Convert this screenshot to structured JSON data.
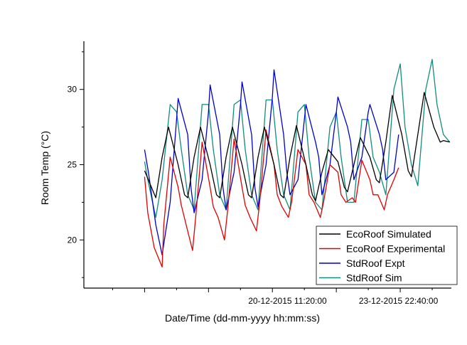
{
  "chart_data": {
    "type": "line",
    "xlabel": "Date/Time (dd-mm-yyyy hh:mm:ss)",
    "ylabel": "Room Temp (°C)",
    "x_unit": "days",
    "x_start": "2015-12-16 00:00",
    "xlim": [
      -1.9,
      9.6
    ],
    "ylim": [
      16.8,
      33.2
    ],
    "y_ticks": [
      20,
      25,
      30
    ],
    "x_tick_labels": [
      {
        "x": 4.472,
        "label": "20-12-2015 11:20:00"
      },
      {
        "x": 7.944,
        "label": "23-12-2015 22:40:00"
      }
    ],
    "legend_position": "bottom-right",
    "grid": false,
    "series": [
      {
        "name": "EcoRoof Simulated",
        "color": "#000000",
        "x": [
          0,
          0.35,
          0.55,
          0.75,
          1.05,
          1.25,
          1.35,
          1.55,
          1.75,
          2.05,
          2.25,
          2.35,
          2.55,
          2.75,
          3.05,
          3.25,
          3.35,
          3.55,
          3.75,
          4.05,
          4.25,
          4.35,
          4.55,
          4.75,
          5.05,
          5.25,
          5.35,
          5.55,
          5.75,
          6.05,
          6.25,
          6.35,
          6.55,
          6.75,
          7.05,
          7.25,
          7.35,
          7.55,
          7.75,
          8.05,
          8.25,
          8.35,
          8.55,
          8.75,
          9.05,
          9.25,
          9.35,
          9.55
        ],
        "values": [
          24.6,
          22.8,
          25.5,
          27.5,
          25.0,
          23.0,
          22.8,
          25.5,
          27.5,
          25.0,
          23.0,
          22.8,
          25.5,
          27.5,
          25.0,
          23.0,
          22.8,
          25.5,
          27.5,
          25.0,
          23.0,
          22.8,
          25.5,
          27.6,
          25.0,
          23.0,
          22.6,
          24.5,
          26.0,
          25.2,
          23.5,
          23.2,
          25.0,
          26.8,
          25.5,
          24.0,
          23.8,
          26.5,
          29.6,
          27.0,
          24.6,
          24.2,
          27.0,
          29.8,
          27.5,
          26.5,
          26.6,
          26.5
        ]
      },
      {
        "name": "EcoRoof Experimental",
        "color": "#e00000",
        "x": [
          0,
          0.1,
          0.3,
          0.55,
          0.6,
          0.8,
          1.05,
          1.15,
          1.3,
          1.5,
          1.6,
          1.8,
          2.05,
          2.15,
          2.3,
          2.5,
          2.6,
          2.8,
          3.05,
          3.15,
          3.3,
          3.5,
          3.6,
          3.8,
          4.05,
          4.15,
          4.3,
          4.5,
          4.6,
          4.8,
          5.05,
          5.15,
          5.3,
          5.5,
          5.6,
          5.8,
          6.05,
          6.15,
          6.3,
          6.5,
          6.6,
          6.8,
          7.05,
          7.15,
          7.3,
          7.5,
          7.6,
          7.8,
          7.95
        ],
        "values": [
          24.2,
          21.8,
          19.5,
          18.2,
          21.0,
          25.5,
          23.5,
          22.3,
          21.0,
          19.3,
          21.5,
          26.5,
          23.5,
          22.2,
          21.5,
          20.0,
          22.0,
          26.7,
          23.5,
          22.3,
          21.5,
          20.6,
          22.5,
          27.3,
          25.0,
          23.0,
          22.2,
          21.5,
          22.5,
          26.0,
          25.0,
          23.0,
          22.5,
          21.5,
          22.5,
          25.0,
          24.5,
          23.0,
          22.5,
          22.8,
          22.5,
          25.3,
          24.0,
          23.0,
          23.0,
          22.0,
          23.0,
          24.0,
          24.8
        ]
      },
      {
        "name": "StdRoof Expt",
        "color": "#0000cc",
        "x": [
          0,
          0.12,
          0.35,
          0.55,
          0.8,
          1.0,
          1.05,
          1.35,
          1.45,
          1.55,
          1.8,
          2.0,
          2.05,
          2.35,
          2.45,
          2.55,
          2.8,
          3.0,
          3.05,
          3.35,
          3.45,
          3.55,
          3.8,
          4.0,
          4.05,
          4.35,
          4.45,
          4.55,
          4.8,
          5.0,
          5.05,
          5.35,
          5.45,
          5.55,
          5.8,
          6.0,
          6.05,
          6.35,
          6.45,
          6.55,
          6.8,
          7.0,
          7.05,
          7.35,
          7.45,
          7.55,
          7.8,
          7.95
        ],
        "values": [
          26.0,
          24.5,
          21.0,
          19.0,
          22.5,
          28.0,
          29.4,
          27.0,
          23.5,
          21.8,
          24.0,
          28.5,
          30.3,
          27.0,
          23.5,
          22.0,
          24.5,
          29.0,
          30.5,
          27.0,
          23.5,
          22.2,
          25.0,
          29.5,
          31.3,
          27.0,
          24.5,
          23.0,
          24.0,
          28.0,
          29.0,
          26.5,
          25.5,
          23.0,
          25.0,
          28.5,
          29.5,
          27.5,
          26.5,
          24.0,
          25.5,
          28.5,
          29.0,
          27.0,
          26.0,
          24.0,
          24.5,
          27.0
        ]
      },
      {
        "name": "StdRoof Sim",
        "color": "#138b7e",
        "x": [
          0,
          0.1,
          0.35,
          0.55,
          0.8,
          1.0,
          1.15,
          1.35,
          1.55,
          1.8,
          2.0,
          2.15,
          2.35,
          2.55,
          2.8,
          3.0,
          3.15,
          3.35,
          3.55,
          3.8,
          4.0,
          4.15,
          4.35,
          4.55,
          4.8,
          5.0,
          5.15,
          5.35,
          5.55,
          5.8,
          6.0,
          6.15,
          6.35,
          6.55,
          6.8,
          7.0,
          7.15,
          7.35,
          7.55,
          7.8,
          8.0,
          8.15,
          8.35,
          8.55,
          8.8,
          9.0,
          9.15,
          9.35,
          9.55
        ],
        "values": [
          25.2,
          24.0,
          21.5,
          24.0,
          29.0,
          28.5,
          26.0,
          23.0,
          22.0,
          29.0,
          29.0,
          26.0,
          23.0,
          22.0,
          29.0,
          29.3,
          26.0,
          23.0,
          22.0,
          29.3,
          29.3,
          26.0,
          23.0,
          22.0,
          28.5,
          29.0,
          25.5,
          22.5,
          22.0,
          27.5,
          28.5,
          25.5,
          22.5,
          22.5,
          28.0,
          28.0,
          25.5,
          24.5,
          23.0,
          30.0,
          31.7,
          27.5,
          25.0,
          23.6,
          30.0,
          32.0,
          29.0,
          27.0,
          26.5
        ]
      }
    ]
  }
}
